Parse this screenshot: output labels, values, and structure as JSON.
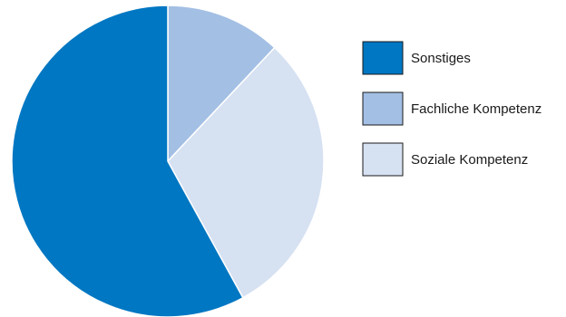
{
  "chart_data": {
    "type": "pie",
    "slices": [
      {
        "label": "Fachliche Kompetenz",
        "value": 12,
        "color": "#a3bfe4"
      },
      {
        "label": "Soziale Kompetenz",
        "value": 30,
        "color": "#d6e1f2"
      },
      {
        "label": "Sonstiges",
        "value": 58,
        "color": "#0077c2"
      }
    ],
    "legend": {
      "placement": "right",
      "order": [
        "Sonstiges",
        "Fachliche Kompetenz",
        "Soziale Kompetenz"
      ]
    },
    "start_angle_deg": 0,
    "direction": "clockwise"
  }
}
